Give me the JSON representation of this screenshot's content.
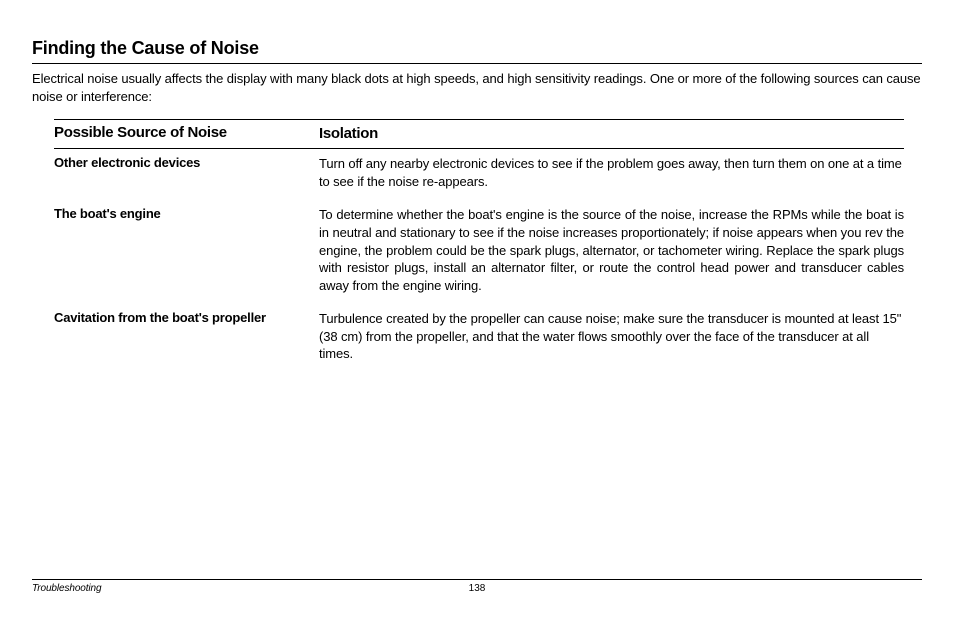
{
  "heading": "Finding the Cause of Noise",
  "intro": "Electrical noise usually affects the display with many black dots at high speeds, and high sensitivity readings. One or more of the following sources can cause noise or interference:",
  "table": {
    "header": {
      "left": "Possible Source of Noise",
      "right": "Isolation"
    },
    "rows": [
      {
        "left": "Other electronic devices",
        "right": "Turn off any nearby electronic devices to see if the problem goes away, then turn them on one at a time to see if the noise re-appears."
      },
      {
        "left": "The boat's engine",
        "right": "To determine whether the boat's engine is the source of the noise, increase the RPMs while the boat is in neutral and stationary to see if the noise increases proportionately; if noise appears when you rev the engine, the problem could be the spark plugs, alternator, or tachometer wiring. Replace the spark plugs with resistor plugs, install an alternator filter, or route the control head power and transducer cables away from the engine wiring."
      },
      {
        "left": "Cavitation from the boat's propeller",
        "right": "Turbulence created by the propeller can cause noise; make sure the transducer is mounted at least 15\" (38 cm) from the propeller, and that the water flows smoothly over the face of the transducer at all times."
      }
    ]
  },
  "footer": {
    "section": "Troubleshooting",
    "page": "138"
  }
}
